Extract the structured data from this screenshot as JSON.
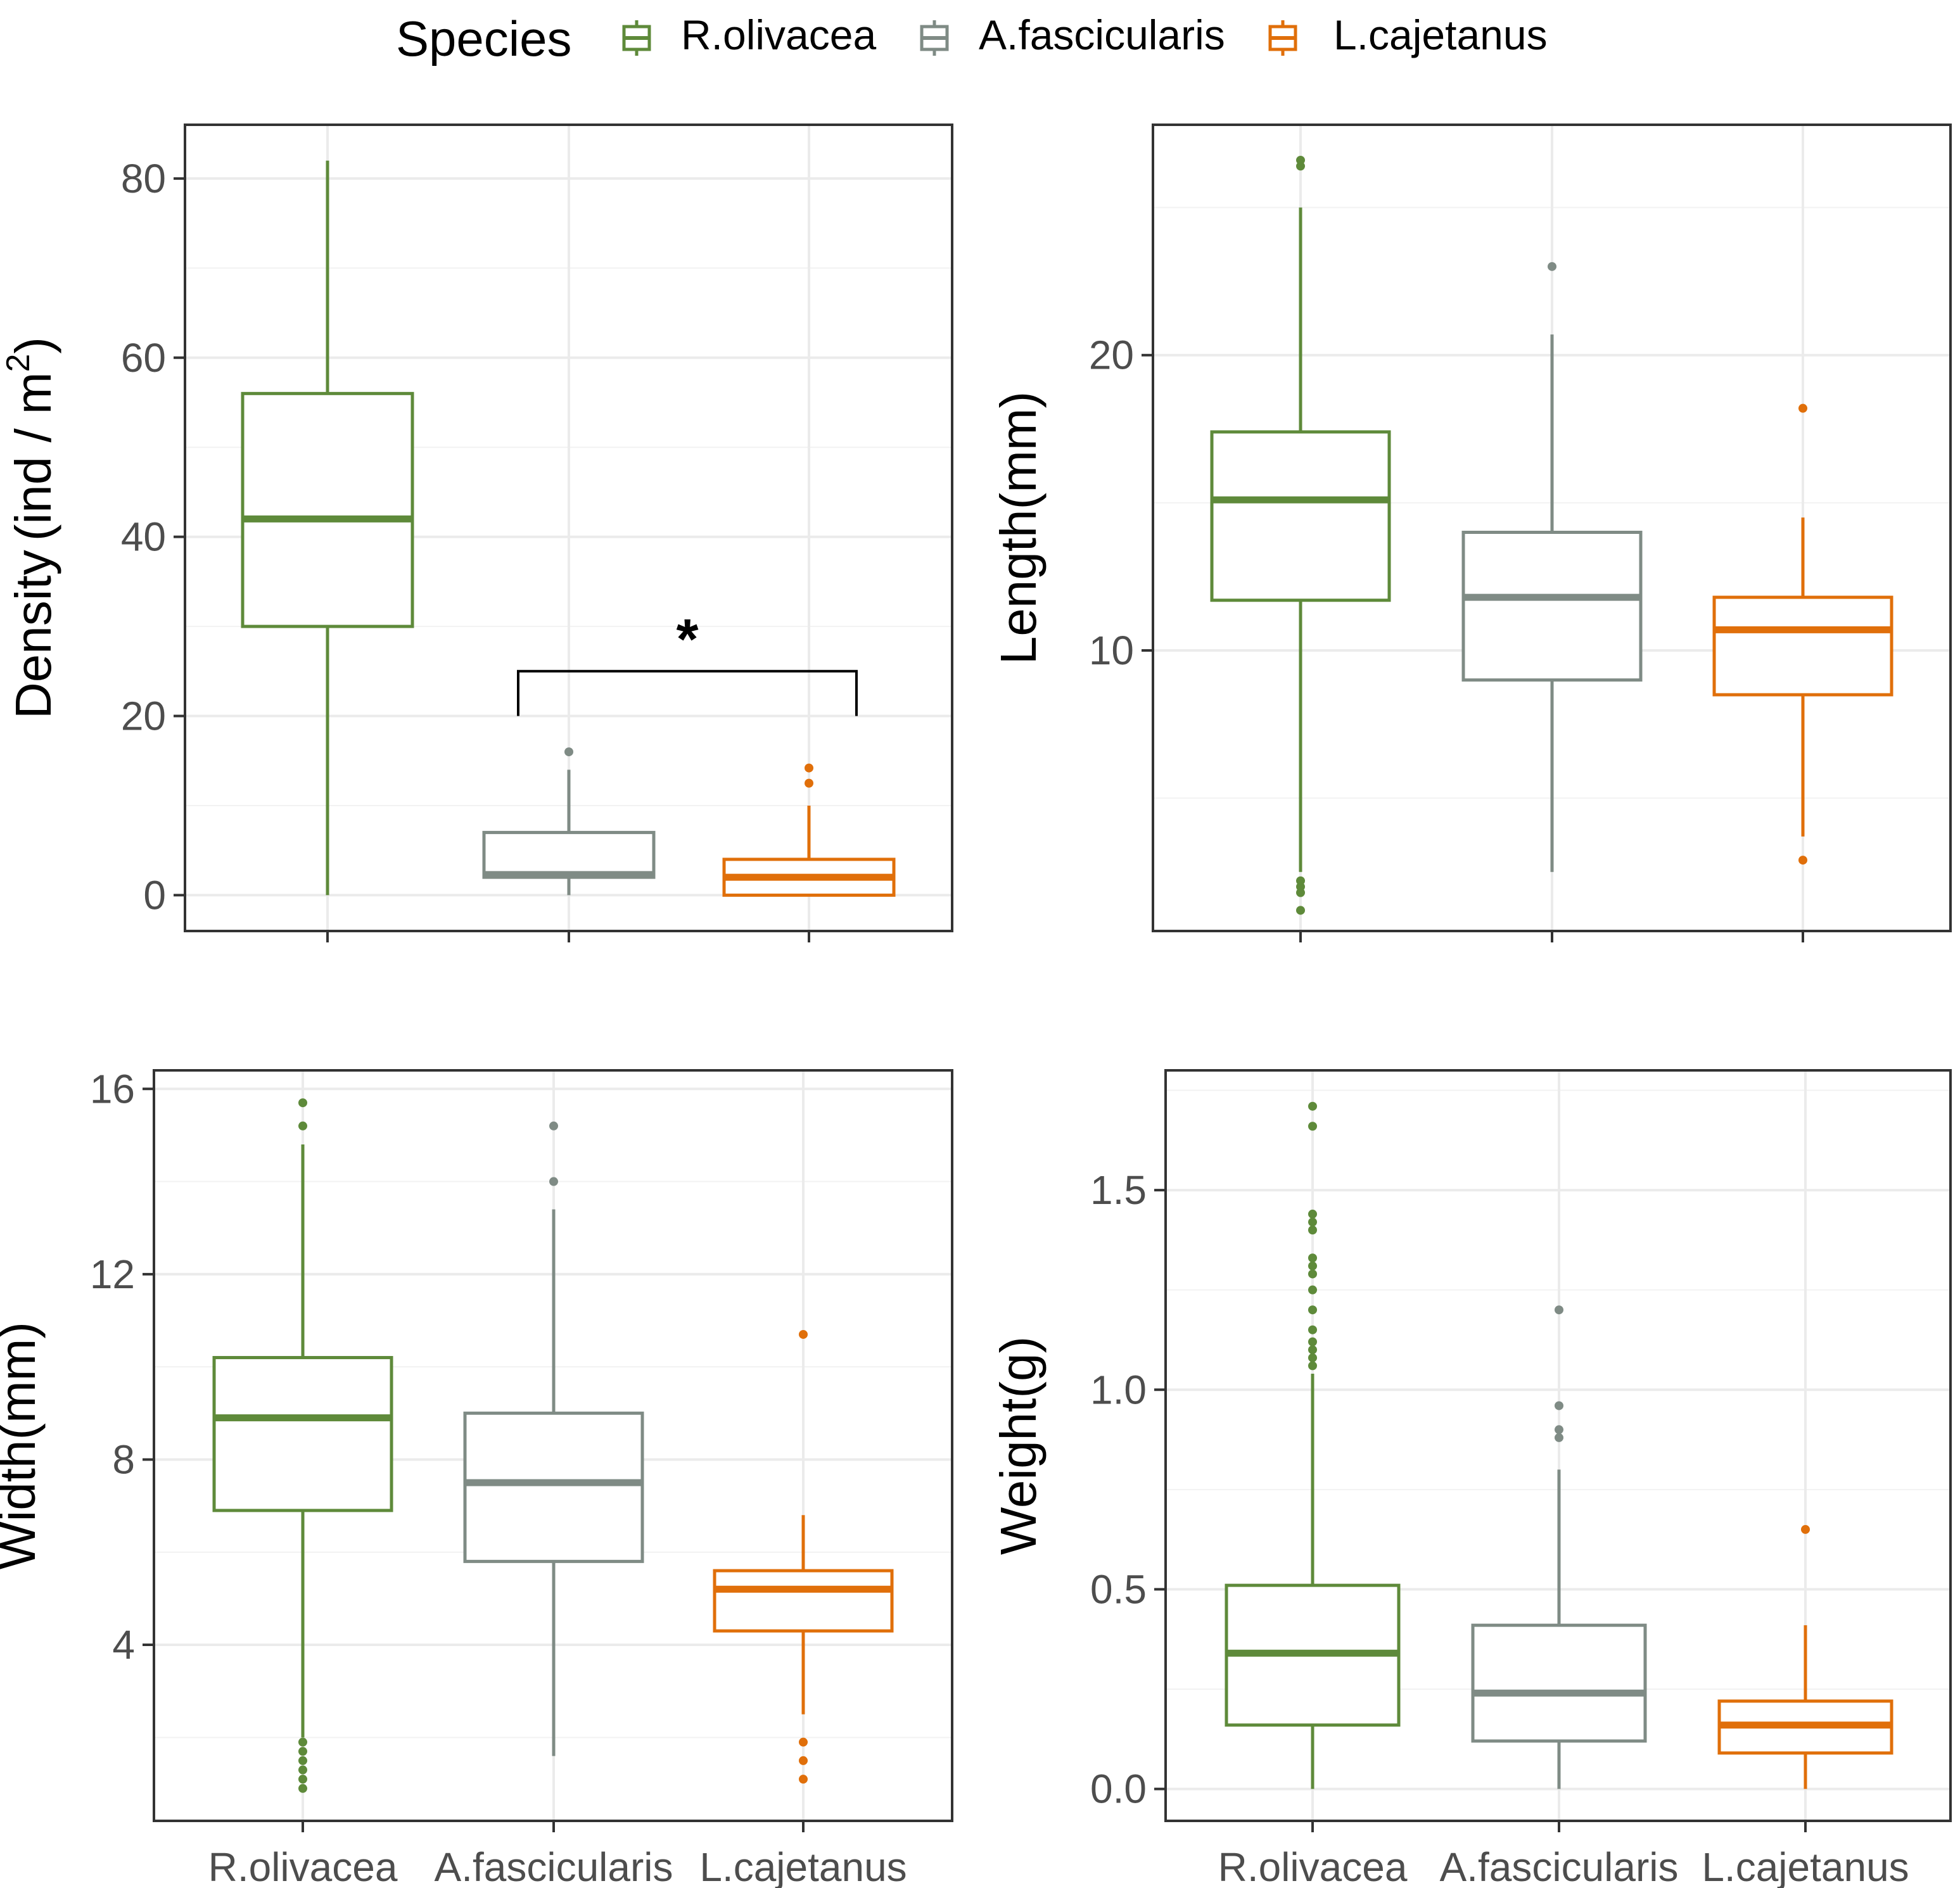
{
  "legend": {
    "title": "Species",
    "items": [
      {
        "label": "R.olivacea",
        "color": "#5e8a3a"
      },
      {
        "label": "A.fascicularis",
        "color": "#7f8b85"
      },
      {
        "label": "L.cajetanus",
        "color": "#e06f0a"
      }
    ]
  },
  "chart_data": [
    {
      "type": "box",
      "ylabel": "Density",
      "ylabel_unit_base": "(ind / m",
      "ylabel_unit_sup": "2",
      "ylabel_unit_close": ")",
      "ylim": [
        -4,
        86
      ],
      "yticks": [
        "0",
        "20",
        "40",
        "60",
        "80"
      ],
      "ytick_values": [
        0,
        20,
        40,
        60,
        80
      ],
      "categories": [
        "R.olivacea",
        "A.fascicularis",
        "L.cajetanus"
      ],
      "show_xticklabels": false,
      "boxes": [
        {
          "name": "R.olivacea",
          "color": "#5e8a3a",
          "min": 0,
          "q1": 30,
          "median": 42,
          "q3": 56,
          "max": 82,
          "outliers": []
        },
        {
          "name": "A.fascicularis",
          "color": "#7f8b85",
          "min": 0,
          "q1": 2,
          "median": 2.3,
          "q3": 7,
          "max": 14,
          "outliers": [
            16
          ]
        },
        {
          "name": "L.cajetanus",
          "color": "#e06f0a",
          "min": 0,
          "q1": 0,
          "median": 2,
          "q3": 4,
          "max": 10,
          "outliers": [
            12.5,
            14.2
          ]
        }
      ],
      "annotation": {
        "text": "*",
        "from": 1,
        "to": 2,
        "y_bar": 25,
        "y_leg": 20
      }
    },
    {
      "type": "box",
      "ylabel": "Length(mm)",
      "ylim": [
        0.5,
        27.8
      ],
      "yticks": [
        "10",
        "20"
      ],
      "ytick_values": [
        10,
        20
      ],
      "categories": [
        "R.olivacea",
        "A.fascicularis",
        "L.cajetanus"
      ],
      "show_xticklabels": false,
      "boxes": [
        {
          "name": "R.olivacea",
          "color": "#5e8a3a",
          "min": 2.5,
          "q1": 11.7,
          "median": 15.1,
          "q3": 17.4,
          "max": 25,
          "outliers": [
            1.2,
            1.8,
            2.0,
            2.2,
            26.4,
            26.6
          ]
        },
        {
          "name": "A.fascicularis",
          "color": "#7f8b85",
          "min": 2.5,
          "q1": 9.0,
          "median": 11.8,
          "q3": 14.0,
          "max": 20.7,
          "outliers": [
            23.0
          ]
        },
        {
          "name": "L.cajetanus",
          "color": "#e06f0a",
          "min": 3.7,
          "q1": 8.5,
          "median": 10.7,
          "q3": 11.8,
          "max": 14.5,
          "outliers": [
            2.9,
            18.2
          ]
        }
      ]
    },
    {
      "type": "box",
      "ylabel": "Width(mm)",
      "ylim": [
        0.2,
        16.4
      ],
      "yticks": [
        "4",
        "8",
        "12",
        "16"
      ],
      "ytick_values": [
        4,
        8,
        12,
        16
      ],
      "categories": [
        "R.olivacea",
        "A.fascicularis",
        "L.cajetanus"
      ],
      "show_xticklabels": true,
      "boxes": [
        {
          "name": "R.olivacea",
          "color": "#5e8a3a",
          "min": 2.0,
          "q1": 6.9,
          "median": 8.9,
          "q3": 10.2,
          "max": 14.8,
          "outliers": [
            0.9,
            1.1,
            1.3,
            1.5,
            1.7,
            1.9,
            15.2,
            15.7
          ]
        },
        {
          "name": "A.fascicularis",
          "color": "#7f8b85",
          "min": 1.6,
          "q1": 5.8,
          "median": 7.5,
          "q3": 9.0,
          "max": 13.4,
          "outliers": [
            14.0,
            15.2
          ]
        },
        {
          "name": "L.cajetanus",
          "color": "#e06f0a",
          "min": 2.5,
          "q1": 4.3,
          "median": 5.2,
          "q3": 5.6,
          "max": 6.8,
          "outliers": [
            1.1,
            1.5,
            1.9,
            10.7
          ]
        }
      ]
    },
    {
      "type": "box",
      "ylabel": "Weight(g)",
      "ylim": [
        -0.08,
        1.8
      ],
      "yticks": [
        "0.0",
        "0.5",
        "1.0",
        "1.5"
      ],
      "ytick_values": [
        0,
        0.5,
        1.0,
        1.5
      ],
      "categories": [
        "R.olivacea",
        "A.fascicularis",
        "L.cajetanus"
      ],
      "show_xticklabels": true,
      "boxes": [
        {
          "name": "R.olivacea",
          "color": "#5e8a3a",
          "min": 0.0,
          "q1": 0.16,
          "median": 0.34,
          "q3": 0.51,
          "max": 1.04,
          "outliers": [
            1.06,
            1.08,
            1.1,
            1.12,
            1.15,
            1.2,
            1.25,
            1.29,
            1.31,
            1.33,
            1.4,
            1.42,
            1.44,
            1.66,
            1.71
          ]
        },
        {
          "name": "A.fascicularis",
          "color": "#7f8b85",
          "min": 0.0,
          "q1": 0.12,
          "median": 0.24,
          "q3": 0.41,
          "max": 0.8,
          "outliers": [
            0.88,
            0.9,
            0.96,
            1.2
          ]
        },
        {
          "name": "L.cajetanus",
          "color": "#e06f0a",
          "min": 0.0,
          "q1": 0.09,
          "median": 0.16,
          "q3": 0.22,
          "max": 0.41,
          "outliers": [
            0.65
          ]
        }
      ]
    }
  ]
}
